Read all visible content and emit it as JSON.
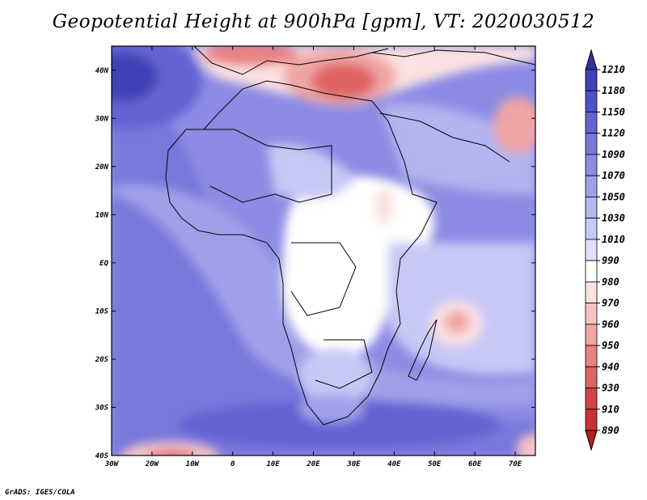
{
  "title": "Geopotential Height at 900hPa [gpm], VT: 2020030512",
  "credit": "GrADS: IGES/COLA",
  "map": {
    "longitude_ticks": [
      "30W",
      "20W",
      "10W",
      "0",
      "10E",
      "20E",
      "30E",
      "40E",
      "50E",
      "60E",
      "70E"
    ],
    "latitude_ticks": [
      "40N",
      "30N",
      "20N",
      "10N",
      "EQ",
      "10S",
      "20S",
      "30S",
      "40S"
    ],
    "lon_range": [
      -30,
      75
    ],
    "lat_range": [
      -40,
      45
    ]
  },
  "colorbar": {
    "labels": [
      "1210",
      "1180",
      "1150",
      "1120",
      "1090",
      "1070",
      "1050",
      "1030",
      "1010",
      "990",
      "980",
      "970",
      "960",
      "950",
      "940",
      "930",
      "910",
      "890"
    ],
    "colors": [
      "#3232a0",
      "#4141b8",
      "#5050c8",
      "#6464d2",
      "#7878dc",
      "#8c8ce4",
      "#a0a0ea",
      "#b4b4f0",
      "#c8c8f6",
      "#e1e1fb",
      "#ffffff",
      "#fbe1e1",
      "#f5c3c3",
      "#f0a5a5",
      "#ea8282",
      "#e06464",
      "#d24646",
      "#c83232",
      "#b41e1e"
    ]
  }
}
